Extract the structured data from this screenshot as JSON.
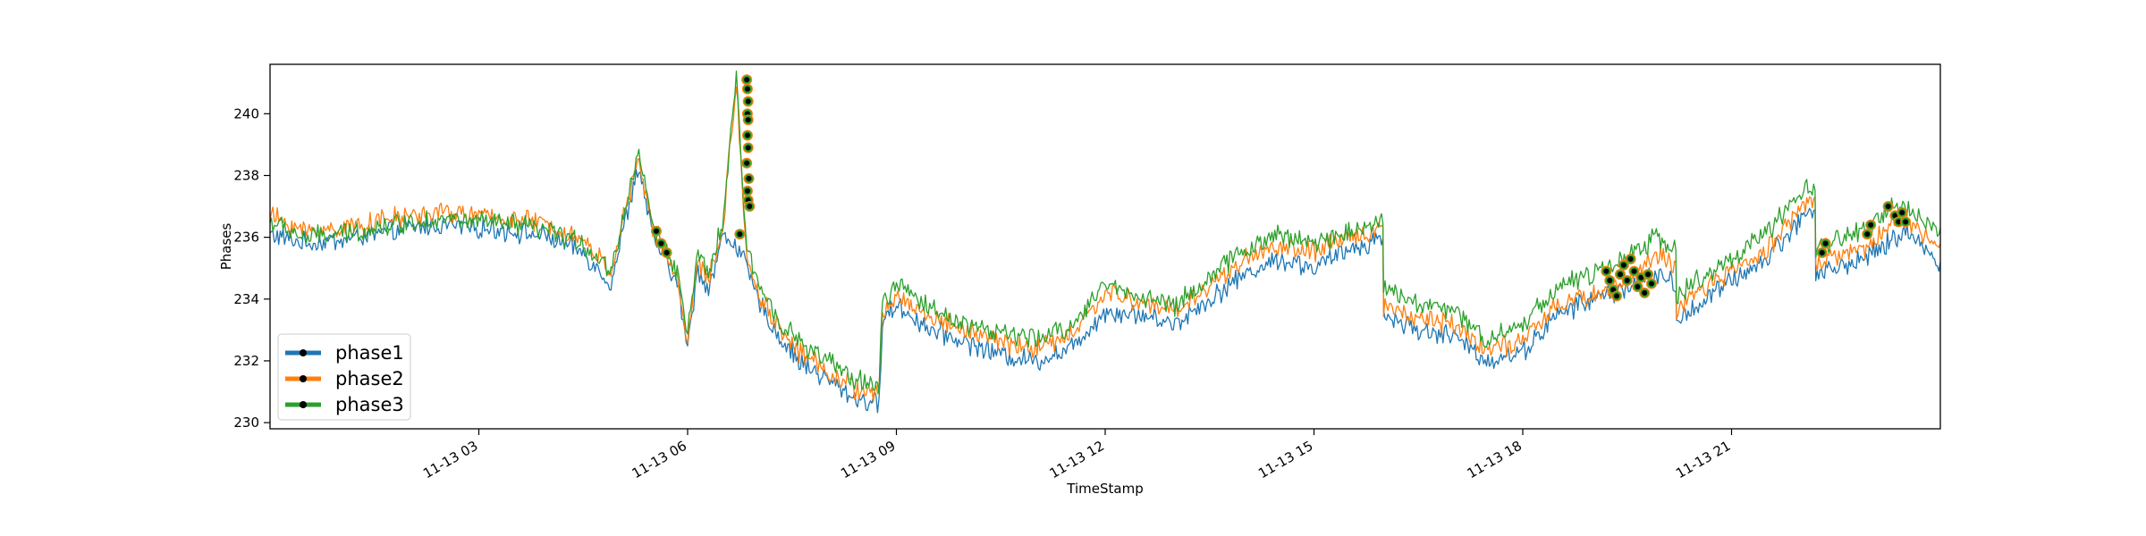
{
  "chart_data": {
    "type": "line",
    "title": "",
    "xlabel": "TimeStamp",
    "ylabel": "Phases",
    "x_ticks": [
      "11-13 03",
      "11-13 06",
      "11-13 09",
      "11-13 12",
      "11-13 15",
      "11-13 18",
      "11-13 21"
    ],
    "x_tick_hours": [
      3,
      6,
      9,
      12,
      15,
      18,
      21
    ],
    "xlim_hours": [
      0,
      24
    ],
    "y_ticks": [
      230,
      232,
      234,
      236,
      238,
      240
    ],
    "ylim": [
      229.8,
      241.6
    ],
    "grid": false,
    "legend_position": "lower-left",
    "series": [
      {
        "name": "phase1",
        "color": "#1f77b4",
        "x": [
          0,
          0.5,
          1,
          1.5,
          2,
          2.5,
          3,
          3.5,
          4,
          4.5,
          4.9,
          5.0,
          5.1,
          5.3,
          5.5,
          5.7,
          5.85,
          6.0,
          6.15,
          6.3,
          6.5,
          6.7,
          6.85,
          7.0,
          7.3,
          7.6,
          8.0,
          8.4,
          8.75,
          8.8,
          9.0,
          9.5,
          10,
          10.5,
          11,
          11.5,
          12,
          12.5,
          13,
          13.5,
          14,
          14.5,
          15,
          15.5,
          15.99,
          16.0,
          16.5,
          17,
          17.5,
          18,
          18.5,
          19,
          19.5,
          19.9,
          20.2,
          20.21,
          20.5,
          21,
          21.5,
          22.0,
          22.2,
          22.21,
          22.5,
          23,
          23.3,
          23.5,
          24
        ],
        "y": [
          236.1,
          235.8,
          235.9,
          236.1,
          236.3,
          236.4,
          236.3,
          236.2,
          236.0,
          235.5,
          234.5,
          235.5,
          236.5,
          238.3,
          236.0,
          235.2,
          234.5,
          232.4,
          235.0,
          234.3,
          236.0,
          235.8,
          235.0,
          234.0,
          232.8,
          232.0,
          231.4,
          230.8,
          230.6,
          233.3,
          233.8,
          233.0,
          232.6,
          232.2,
          232.0,
          232.4,
          233.6,
          233.5,
          233.2,
          234.0,
          234.8,
          235.3,
          235.0,
          235.6,
          236.0,
          233.5,
          233.0,
          232.8,
          232.0,
          232.3,
          233.5,
          234.0,
          234.4,
          234.8,
          234.5,
          233.2,
          233.8,
          234.6,
          235.3,
          236.6,
          237.0,
          234.8,
          235.0,
          235.4,
          235.9,
          236.2,
          235.2
        ],
        "markers": []
      },
      {
        "name": "phase2",
        "color": "#ff7f0e",
        "x": [
          0,
          0.5,
          1,
          1.5,
          2,
          2.5,
          3,
          3.5,
          4,
          4.5,
          4.9,
          5.0,
          5.1,
          5.3,
          5.5,
          5.7,
          5.85,
          6.0,
          6.15,
          6.3,
          6.5,
          6.7,
          6.85,
          7.0,
          7.3,
          7.6,
          8.0,
          8.4,
          8.75,
          8.8,
          9.0,
          9.5,
          10,
          10.5,
          11,
          11.5,
          12,
          12.5,
          13,
          13.5,
          14,
          14.5,
          15,
          15.5,
          15.99,
          16.0,
          16.5,
          17,
          17.5,
          18,
          18.5,
          19,
          19.5,
          19.9,
          20.2,
          20.21,
          20.5,
          21,
          21.5,
          22.0,
          22.2,
          22.21,
          22.5,
          23,
          23.3,
          23.5,
          24
        ],
        "y": [
          236.7,
          236.2,
          236.3,
          236.5,
          236.7,
          236.8,
          236.7,
          236.6,
          236.4,
          235.9,
          234.9,
          235.9,
          236.8,
          238.5,
          236.2,
          235.4,
          234.7,
          232.7,
          235.2,
          234.6,
          236.2,
          241.0,
          235.3,
          234.3,
          233.1,
          232.3,
          231.7,
          231.1,
          230.9,
          233.5,
          234.1,
          233.4,
          233.0,
          232.6,
          232.4,
          232.8,
          234.2,
          233.9,
          233.6,
          234.4,
          235.3,
          235.7,
          235.5,
          236.0,
          236.3,
          233.8,
          233.4,
          233.2,
          232.4,
          232.6,
          233.8,
          234.1,
          234.6,
          235.4,
          235.1,
          233.5,
          234.2,
          234.9,
          235.6,
          237.0,
          237.3,
          235.1,
          235.4,
          235.7,
          236.6,
          236.5,
          235.8
        ],
        "markers": []
      },
      {
        "name": "phase3",
        "color": "#2ca02c",
        "x": [
          0,
          0.5,
          1,
          1.5,
          2,
          2.5,
          3,
          3.5,
          4,
          4.5,
          4.9,
          5.0,
          5.1,
          5.3,
          5.5,
          5.7,
          5.85,
          6.0,
          6.15,
          6.3,
          6.5,
          6.7,
          6.85,
          7.0,
          7.3,
          7.6,
          8.0,
          8.4,
          8.75,
          8.8,
          9.0,
          9.5,
          10,
          10.5,
          11,
          11.5,
          12,
          12.5,
          13,
          13.5,
          14,
          14.5,
          15,
          15.5,
          15.99,
          16.0,
          16.5,
          17,
          17.5,
          18,
          18.5,
          19,
          19.5,
          19.9,
          20.2,
          20.21,
          20.5,
          21,
          21.5,
          22.0,
          22.2,
          22.21,
          22.5,
          23,
          23.3,
          23.5,
          24
        ],
        "y": [
          236.5,
          236.0,
          236.1,
          236.3,
          236.5,
          236.6,
          236.5,
          236.4,
          236.2,
          235.8,
          234.9,
          235.9,
          236.9,
          238.8,
          236.3,
          235.6,
          234.9,
          232.9,
          235.4,
          234.8,
          236.4,
          241.1,
          235.6,
          234.6,
          233.4,
          232.6,
          232.0,
          231.4,
          231.2,
          233.8,
          234.5,
          233.7,
          233.2,
          232.9,
          232.7,
          233.1,
          234.5,
          234.1,
          233.8,
          234.7,
          235.6,
          236.1,
          235.8,
          236.2,
          236.6,
          234.3,
          233.9,
          233.6,
          232.7,
          233.2,
          234.4,
          234.8,
          235.3,
          236.0,
          235.7,
          234.0,
          234.6,
          235.3,
          236.1,
          237.4,
          237.7,
          235.6,
          235.9,
          236.3,
          237.0,
          236.9,
          236.3
        ],
        "markers": [
          {
            "x": 5.55,
            "y": 236.2
          },
          {
            "x": 5.62,
            "y": 235.8
          },
          {
            "x": 5.7,
            "y": 235.5
          },
          {
            "x": 6.75,
            "y": 236.1
          },
          {
            "x": 6.85,
            "y": 241.1
          },
          {
            "x": 6.86,
            "y": 240.8
          },
          {
            "x": 6.87,
            "y": 240.4
          },
          {
            "x": 6.86,
            "y": 240.0
          },
          {
            "x": 6.87,
            "y": 239.8
          },
          {
            "x": 6.86,
            "y": 239.3
          },
          {
            "x": 6.87,
            "y": 238.9
          },
          {
            "x": 6.85,
            "y": 238.4
          },
          {
            "x": 6.88,
            "y": 237.9
          },
          {
            "x": 6.86,
            "y": 237.5
          },
          {
            "x": 6.87,
            "y": 237.2
          },
          {
            "x": 6.89,
            "y": 237.0
          },
          {
            "x": 19.2,
            "y": 234.9
          },
          {
            "x": 19.25,
            "y": 234.6
          },
          {
            "x": 19.3,
            "y": 234.3
          },
          {
            "x": 19.35,
            "y": 234.1
          },
          {
            "x": 19.4,
            "y": 234.8
          },
          {
            "x": 19.45,
            "y": 235.1
          },
          {
            "x": 19.5,
            "y": 234.6
          },
          {
            "x": 19.55,
            "y": 235.3
          },
          {
            "x": 19.6,
            "y": 234.9
          },
          {
            "x": 19.65,
            "y": 234.4
          },
          {
            "x": 19.7,
            "y": 234.7
          },
          {
            "x": 19.75,
            "y": 234.2
          },
          {
            "x": 19.8,
            "y": 234.8
          },
          {
            "x": 19.85,
            "y": 234.5
          },
          {
            "x": 22.3,
            "y": 235.5
          },
          {
            "x": 22.35,
            "y": 235.8
          },
          {
            "x": 22.95,
            "y": 236.1
          },
          {
            "x": 23.0,
            "y": 236.4
          },
          {
            "x": 23.25,
            "y": 237.0
          },
          {
            "x": 23.35,
            "y": 236.7
          },
          {
            "x": 23.4,
            "y": 236.5
          },
          {
            "x": 23.45,
            "y": 236.8
          },
          {
            "x": 23.5,
            "y": 236.5
          }
        ]
      }
    ]
  }
}
